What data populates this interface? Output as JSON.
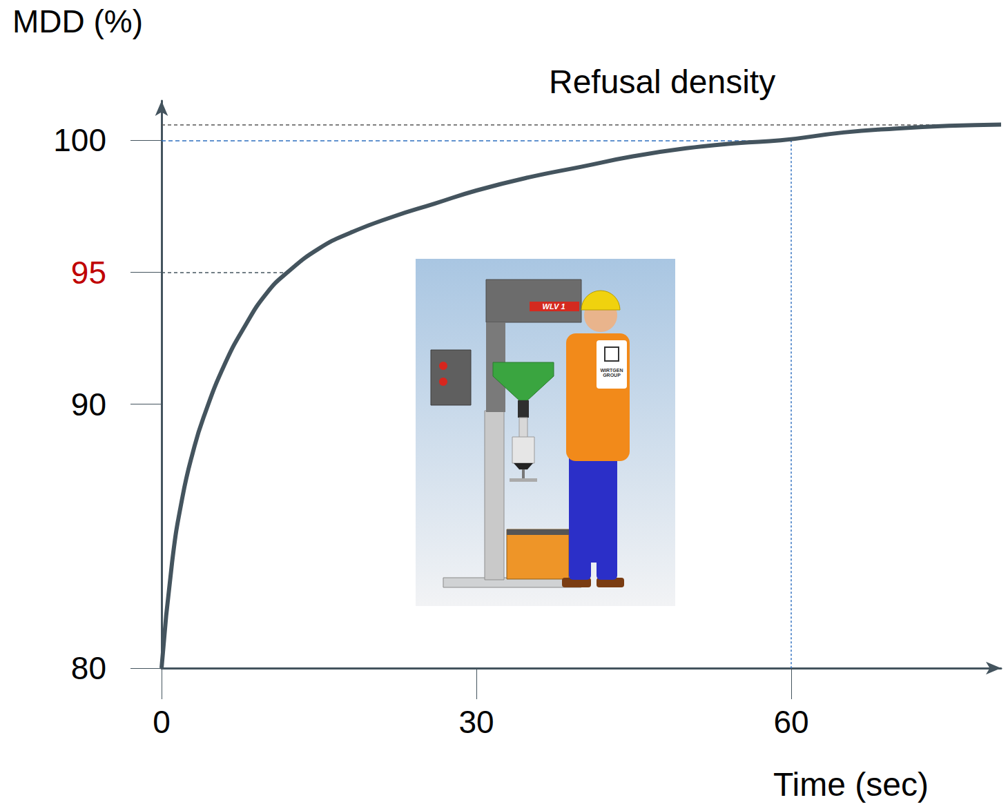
{
  "chart_data": {
    "type": "line",
    "title": "Refusal density",
    "x_label": "Time (sec)",
    "y_label": "MDD (%)",
    "x": [
      0,
      1,
      2,
      3,
      4,
      6,
      8,
      10,
      12,
      15,
      18,
      22,
      26,
      30,
      35,
      40,
      45,
      50,
      55,
      59,
      65,
      70,
      75,
      80
    ],
    "values": [
      80,
      84,
      86.5,
      88.2,
      89.5,
      91.5,
      93,
      94.2,
      95,
      95.9,
      96.5,
      97.1,
      97.6,
      98.1,
      98.6,
      99.0,
      99.4,
      99.7,
      99.9,
      100,
      100.3,
      100.45,
      100.55,
      100.6
    ],
    "color": "#44545e",
    "xlim": [
      0,
      80
    ],
    "xticks": [
      0,
      30,
      60
    ],
    "ylim": [
      80,
      101.5
    ],
    "yticks": [
      80,
      90,
      {
        "value": 95,
        "label": "95",
        "color": "#c00000"
      },
      100
    ],
    "refusal_density": 100.6,
    "density_guide": {
      "x": 12,
      "y": 95,
      "color": "#44545e"
    },
    "time_guide": {
      "x": 60,
      "y": 100,
      "color": "#2e6fc0"
    },
    "grid": false,
    "illustration": {
      "machine_label": "WLV 1",
      "logo": "WIRTGEN GROUP"
    }
  }
}
